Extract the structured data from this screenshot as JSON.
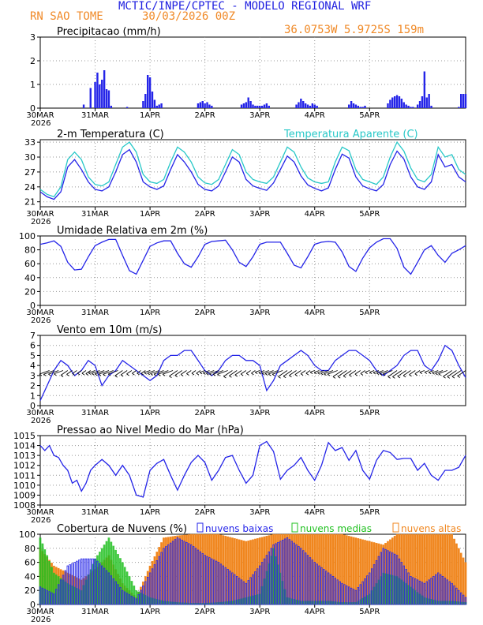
{
  "header": {
    "line1": "MCTIC/INPE/CPTEC - MODELO REGIONAL WRF",
    "station": "RN SAO TOME",
    "run": "30/03/2026 00Z",
    "coords": "36.0753W 5.9725S 159m"
  },
  "x_axis": {
    "labels": [
      "30MAR",
      "31MAR",
      "1APR",
      "2APR",
      "3APR",
      "4APR",
      "5APR"
    ],
    "year": "2026"
  },
  "colors": {
    "blue": "#2424e8",
    "orange": "#f0861e",
    "cyan": "#28c8c8",
    "green": "#20c020",
    "grid": "#999999"
  },
  "chart_data": [
    {
      "type": "bar",
      "id": "precip",
      "title": "Precipitacao (mm/h)",
      "ylim": [
        0,
        3
      ],
      "yticks": [
        0,
        1,
        2,
        3
      ],
      "x_hours": [
        19,
        22,
        24,
        25,
        26,
        27,
        28,
        29,
        30,
        31,
        38,
        45,
        46,
        47,
        48,
        49,
        50,
        51,
        52,
        53,
        69,
        70,
        71,
        72,
        73,
        74,
        75,
        88,
        89,
        90,
        91,
        92,
        93,
        94,
        95,
        96,
        97,
        98,
        99,
        100,
        112,
        113,
        114,
        115,
        116,
        117,
        118,
        119,
        120,
        121,
        135,
        136,
        137,
        138,
        139,
        140,
        141,
        142,
        152,
        153,
        154,
        155,
        156,
        157,
        158,
        159,
        160,
        161,
        162,
        163,
        165,
        166,
        167,
        168,
        169,
        170,
        171,
        183,
        184,
        185,
        186
      ],
      "values": [
        0.15,
        0.85,
        1.1,
        1.5,
        1.0,
        1.2,
        1.6,
        0.8,
        0.75,
        0.1,
        0.05,
        0.3,
        0.6,
        1.4,
        1.3,
        0.7,
        0.35,
        0.1,
        0.15,
        0.2,
        0.2,
        0.25,
        0.3,
        0.2,
        0.25,
        0.15,
        0.1,
        0.15,
        0.2,
        0.25,
        0.45,
        0.3,
        0.15,
        0.1,
        0.1,
        0.1,
        0.1,
        0.15,
        0.2,
        0.1,
        0.15,
        0.25,
        0.4,
        0.3,
        0.2,
        0.15,
        0.1,
        0.2,
        0.15,
        0.1,
        0.15,
        0.3,
        0.2,
        0.15,
        0.1,
        0.05,
        0.05,
        0.1,
        0.2,
        0.35,
        0.45,
        0.5,
        0.55,
        0.5,
        0.4,
        0.25,
        0.15,
        0.1,
        0.05,
        0.05,
        0.15,
        0.3,
        0.5,
        1.55,
        0.45,
        0.6,
        0.1,
        0.05,
        0.6,
        0.6,
        0.6
      ]
    },
    {
      "type": "line",
      "id": "temp",
      "title": "2-m Temperatura (C)",
      "title2": "Temperatura Aparente (C)",
      "ylim": [
        20,
        33.5
      ],
      "yticks": [
        21,
        24,
        27,
        30,
        33
      ],
      "series": [
        {
          "name": "2-m Temperatura (C)",
          "color": "#2424e8",
          "x": [
            0,
            3,
            6,
            9,
            12,
            15,
            18,
            21,
            24,
            27,
            30,
            33,
            36,
            39,
            42,
            45,
            48,
            51,
            54,
            57,
            60,
            63,
            66,
            69,
            72,
            75,
            78,
            81,
            84,
            87,
            90,
            93,
            96,
            99,
            102,
            105,
            108,
            111,
            114,
            117,
            120,
            123,
            126,
            129,
            132,
            135,
            138,
            141,
            144,
            147,
            150,
            153,
            156,
            159,
            162,
            165,
            168,
            171,
            174,
            177,
            180,
            183,
            186
          ],
          "values": [
            23,
            22,
            21.5,
            23,
            28,
            29.5,
            27.5,
            25,
            23.5,
            23.2,
            24,
            27,
            30.5,
            31.5,
            29,
            25,
            24,
            23.5,
            24.2,
            27.5,
            30.5,
            29,
            27,
            24.5,
            23.5,
            23.2,
            24.2,
            27,
            30,
            29,
            25.5,
            24.2,
            23.7,
            23.3,
            24.8,
            27.5,
            30.2,
            29,
            26.2,
            24.4,
            23.7,
            23.2,
            23.8,
            27.5,
            30.6,
            29.8,
            26,
            24.2,
            23.6,
            23.2,
            24.5,
            28.5,
            31.2,
            29.6,
            26,
            24,
            23.5,
            25,
            30.5,
            28,
            28.5,
            26,
            25
          ]
        },
        {
          "name": "Temperatura Aparente (C)",
          "color": "#28c8c8",
          "x": [
            0,
            3,
            6,
            9,
            12,
            15,
            18,
            21,
            24,
            27,
            30,
            33,
            36,
            39,
            42,
            45,
            48,
            51,
            54,
            57,
            60,
            63,
            66,
            69,
            72,
            75,
            78,
            81,
            84,
            87,
            90,
            93,
            96,
            99,
            102,
            105,
            108,
            111,
            114,
            117,
            120,
            123,
            126,
            129,
            132,
            135,
            138,
            141,
            144,
            147,
            150,
            153,
            156,
            159,
            162,
            165,
            168,
            171,
            174,
            177,
            180,
            183,
            186
          ],
          "values": [
            23.5,
            22.5,
            22,
            24,
            29.5,
            31,
            29.5,
            26,
            24.5,
            24.2,
            25,
            28.5,
            32,
            33,
            31,
            26.5,
            25,
            24.7,
            25.5,
            29,
            32,
            31,
            29,
            26,
            24.8,
            24.5,
            25.5,
            28.5,
            31.5,
            30.5,
            27,
            25.5,
            25,
            24.7,
            26,
            29,
            32,
            31,
            28,
            25.8,
            25,
            24.7,
            25,
            29,
            32,
            31.3,
            27.5,
            25.5,
            25,
            24.5,
            26,
            30,
            33,
            31.2,
            27.8,
            25.5,
            25,
            26.5,
            32,
            30,
            30.5,
            27.5,
            26.5
          ]
        }
      ]
    },
    {
      "type": "line",
      "id": "rh",
      "title": "Umidade Relativa em 2m (%)",
      "ylim": [
        0,
        100
      ],
      "yticks": [
        0,
        20,
        40,
        60,
        80,
        100
      ],
      "series": [
        {
          "name": "Umidade Relativa em 2m (%)",
          "color": "#2424e8",
          "x": [
            0,
            3,
            6,
            9,
            12,
            15,
            18,
            21,
            24,
            27,
            30,
            33,
            36,
            39,
            42,
            45,
            48,
            51,
            54,
            57,
            60,
            63,
            66,
            69,
            72,
            75,
            78,
            81,
            84,
            87,
            90,
            93,
            96,
            99,
            102,
            105,
            108,
            111,
            114,
            117,
            120,
            123,
            126,
            129,
            132,
            135,
            138,
            141,
            144,
            147,
            150,
            153,
            156,
            159,
            162,
            165,
            168,
            171,
            174,
            177,
            180,
            183,
            186
          ],
          "values": [
            88,
            90,
            93,
            85,
            62,
            51,
            52,
            70,
            86,
            91,
            95,
            95,
            72,
            50,
            45,
            65,
            85,
            90,
            93,
            93,
            75,
            60,
            55,
            70,
            88,
            92,
            93,
            94,
            80,
            62,
            56,
            70,
            88,
            91,
            91,
            91,
            75,
            58,
            54,
            70,
            88,
            91,
            92,
            91,
            77,
            56,
            49,
            68,
            83,
            91,
            96,
            96,
            82,
            55,
            45,
            62,
            80,
            86,
            72,
            62,
            75,
            80,
            86
          ]
        }
      ]
    },
    {
      "type": "line",
      "id": "wind",
      "title": "Vento em 10m (m/s)",
      "ylim": [
        0,
        7
      ],
      "yticks": [
        0,
        1,
        2,
        3,
        4,
        5,
        6,
        7
      ],
      "series": [
        {
          "name": "Vento em 10m (m/s)",
          "color": "#2424e8",
          "x": [
            0,
            3,
            6,
            9,
            12,
            15,
            18,
            21,
            24,
            27,
            30,
            33,
            36,
            39,
            42,
            45,
            48,
            51,
            54,
            57,
            60,
            63,
            66,
            69,
            72,
            75,
            78,
            81,
            84,
            87,
            90,
            93,
            96,
            99,
            102,
            105,
            108,
            111,
            114,
            117,
            120,
            123,
            126,
            129,
            132,
            135,
            138,
            141,
            144,
            147,
            150,
            153,
            156,
            159,
            162,
            165,
            168,
            171,
            174,
            177,
            180,
            183,
            186
          ],
          "values": [
            0.5,
            2,
            3.5,
            4.5,
            4,
            3,
            3.5,
            4.5,
            4,
            2,
            3,
            3.5,
            4.5,
            4,
            3.5,
            3,
            2.5,
            3,
            4.5,
            5,
            5,
            5.5,
            5.5,
            4.5,
            3.5,
            3,
            3.5,
            4.5,
            5,
            5,
            4.5,
            4.5,
            4,
            1.5,
            2.5,
            4,
            4.5,
            5,
            5.5,
            5,
            4,
            3.5,
            3.5,
            4.5,
            5,
            5.5,
            5.5,
            5,
            4.5,
            3.5,
            3,
            3.5,
            4,
            5,
            5.5,
            5.5,
            4,
            3.5,
            4.5,
            6,
            5.5,
            4,
            2.8
          ]
        }
      ]
    },
    {
      "type": "line",
      "id": "pressure",
      "title": "Pressao ao Nivel Medio do Mar (hPa)",
      "ylim": [
        1008,
        1015
      ],
      "yticks": [
        1008,
        1009,
        1010,
        1011,
        1012,
        1013,
        1014,
        1015
      ],
      "series": [
        {
          "name": "Pressao ao Nivel Medio do Mar (hPa)",
          "color": "#2424e8",
          "x": [
            0,
            2,
            4,
            6,
            8,
            10,
            12,
            14,
            16,
            18,
            20,
            22,
            24,
            27,
            30,
            33,
            36,
            39,
            42,
            45,
            48,
            51,
            54,
            57,
            60,
            63,
            66,
            69,
            72,
            75,
            78,
            81,
            84,
            87,
            90,
            93,
            96,
            99,
            102,
            105,
            108,
            111,
            114,
            117,
            120,
            123,
            126,
            129,
            132,
            135,
            138,
            141,
            144,
            147,
            150,
            153,
            156,
            159,
            162,
            165,
            168,
            171,
            174,
            177,
            180,
            183,
            186
          ],
          "values": [
            1014,
            1013.5,
            1014,
            1013,
            1012.8,
            1012,
            1011.5,
            1010.2,
            1010.5,
            1009.4,
            1010.2,
            1011.5,
            1012,
            1012.6,
            1012,
            1011,
            1012,
            1011,
            1009,
            1008.8,
            1011.5,
            1012.2,
            1012.6,
            1011,
            1009.5,
            1011,
            1012.3,
            1013,
            1012.3,
            1010.5,
            1011.5,
            1012.8,
            1013,
            1011.5,
            1010.2,
            1011,
            1014,
            1014.4,
            1013.4,
            1010.6,
            1011.5,
            1012,
            1012.8,
            1011.5,
            1010.5,
            1012,
            1014.3,
            1013.5,
            1013.8,
            1012.5,
            1013.5,
            1011.5,
            1010.6,
            1012.5,
            1013.5,
            1013.3,
            1012.6,
            1012.7,
            1012.7,
            1011.5,
            1012.2,
            1011,
            1010.5,
            1011.5,
            1011.5,
            1011.8,
            1013
          ]
        }
      ]
    },
    {
      "type": "bar",
      "id": "clouds",
      "title": "Cobertura de Nuvens (%)",
      "ylim": [
        0,
        100
      ],
      "yticks": [
        0,
        20,
        40,
        60,
        80,
        100
      ],
      "legend": [
        "nuvens baixas",
        "nuvens medias",
        "nuvens altas"
      ],
      "series": [
        {
          "name": "nuvens baixas",
          "color": "#2424e8",
          "x": [
            0,
            6,
            12,
            18,
            24,
            30,
            36,
            42,
            48,
            54,
            60,
            66,
            72,
            78,
            84,
            90,
            96,
            102,
            108,
            114,
            120,
            126,
            132,
            138,
            144,
            150,
            156,
            162,
            168,
            174,
            180,
            186
          ],
          "values": [
            25,
            15,
            55,
            65,
            65,
            45,
            20,
            8,
            45,
            80,
            95,
            85,
            70,
            60,
            45,
            30,
            55,
            85,
            95,
            80,
            60,
            45,
            30,
            20,
            45,
            80,
            70,
            40,
            30,
            45,
            30,
            10
          ]
        },
        {
          "name": "nuvens medias",
          "color": "#20c020",
          "x": [
            0,
            6,
            12,
            18,
            24,
            30,
            36,
            42,
            48,
            54,
            60,
            66,
            72,
            78,
            84,
            90,
            96,
            102,
            108,
            114,
            120,
            126,
            132,
            138,
            144,
            150,
            156,
            162,
            168,
            174,
            180,
            186
          ],
          "values": [
            95,
            45,
            30,
            20,
            65,
            95,
            60,
            20,
            10,
            5,
            3,
            2,
            2,
            3,
            5,
            10,
            15,
            80,
            10,
            5,
            5,
            5,
            3,
            3,
            15,
            45,
            40,
            25,
            10,
            5,
            5,
            3
          ]
        },
        {
          "name": "nuvens altas",
          "color": "#f0861e",
          "x": [
            0,
            6,
            12,
            18,
            24,
            30,
            36,
            42,
            48,
            54,
            60,
            66,
            72,
            78,
            84,
            90,
            96,
            102,
            108,
            114,
            120,
            126,
            132,
            138,
            144,
            150,
            156,
            162,
            168,
            174,
            180,
            186
          ],
          "values": [
            80,
            55,
            45,
            35,
            50,
            70,
            30,
            10,
            55,
            95,
            98,
            100,
            100,
            100,
            95,
            90,
            95,
            100,
            100,
            100,
            100,
            100,
            100,
            95,
            90,
            85,
            100,
            100,
            100,
            100,
            100,
            60
          ]
        }
      ]
    }
  ]
}
